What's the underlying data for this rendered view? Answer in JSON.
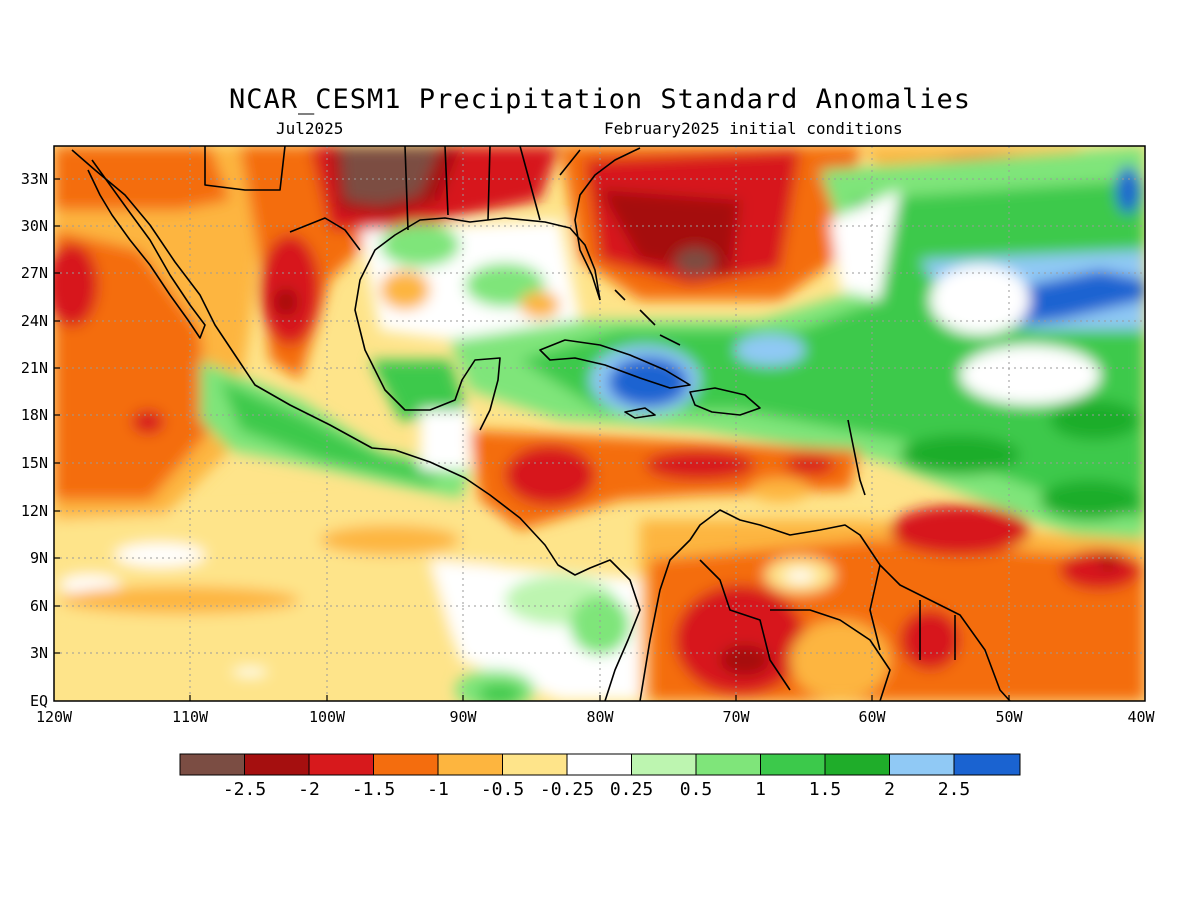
{
  "title": "NCAR_CESM1 Precipitation Standard Anomalies",
  "subtitle_left": "Jul2025",
  "subtitle_right": "February2025 initial conditions",
  "lat_labels": [
    "33N",
    "30N",
    "27N",
    "24N",
    "21N",
    "18N",
    "15N",
    "12N",
    "9N",
    "6N",
    "3N",
    "EQ"
  ],
  "lon_labels": [
    "120W",
    "110W",
    "100W",
    "90W",
    "80W",
    "70W",
    "60W",
    "50W",
    "40W"
  ],
  "legend": {
    "colors": [
      "#7b4d43",
      "#a50f0f",
      "#d7191c",
      "#f46d0e",
      "#fdb53f",
      "#fee48a",
      "#ffffff",
      "#bdf5b0",
      "#7fe57a",
      "#3cc94b",
      "#1fad2a",
      "#90c9f5",
      "#1a63d1"
    ],
    "labels": [
      "-2.5",
      "-2",
      "-1.5",
      "-1",
      "-0.5",
      "-0.25",
      "0.25",
      "0.5",
      "1",
      "1.5",
      "2",
      "2.5"
    ]
  }
}
